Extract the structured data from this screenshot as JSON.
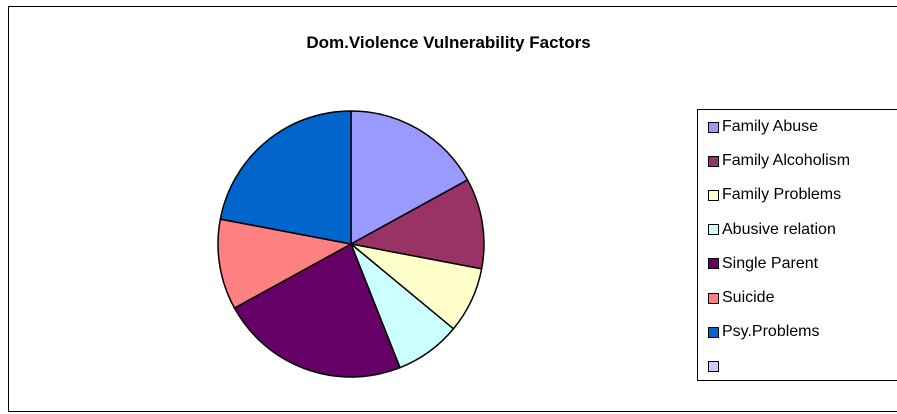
{
  "chart_data": {
    "type": "pie",
    "title": "Dom.Violence Vulnerability Factors",
    "categories": [
      "Family Abuse",
      "Family Alcoholism",
      "Family Problems",
      "Abusive relation",
      "Single Parent",
      "Suicide",
      "Psy.Problems",
      ""
    ],
    "values": [
      17,
      11,
      8,
      8,
      23,
      11,
      22,
      0
    ],
    "colors": [
      "#9999FF",
      "#993366",
      "#FFFFCC",
      "#CCFFFF",
      "#660066",
      "#FF8080",
      "#0066CC",
      "#CCCCFF"
    ],
    "legend_position": "right",
    "start_angle_deg": 0,
    "direction": "clockwise"
  }
}
